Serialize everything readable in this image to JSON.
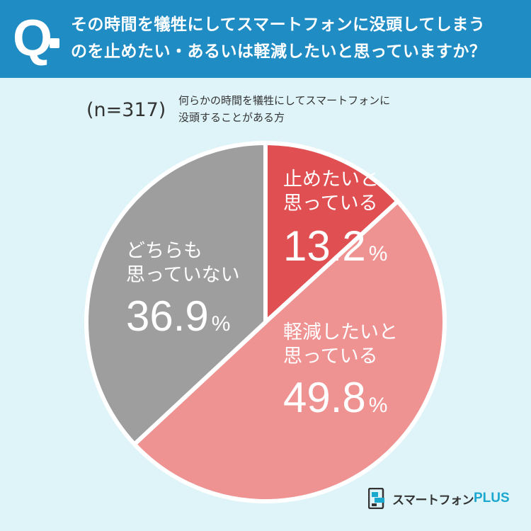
{
  "header": {
    "q_mark": "Q",
    "question_line1": "その時間を犠牲にしてスマートフォンに没頭してしまう",
    "question_line2": "のを止めたい・あるいは軽減したいと思っていますか？"
  },
  "sample": {
    "n_label": "(n=317)",
    "subject_line1": "何らかの時間を犠牲にしてスマートフォンに",
    "subject_line2": "没頭することがある方"
  },
  "chart_data": {
    "type": "pie",
    "start": "12 o'clock, clockwise",
    "slices": [
      {
        "label_lines": [
          "止めたいと",
          "思っている"
        ],
        "value": 13.2,
        "value_text": "13.2",
        "unit": "%",
        "color": "#e05052"
      },
      {
        "label_lines": [
          "軽減したいと",
          "思っている"
        ],
        "value": 49.8,
        "value_text": "49.8",
        "unit": "%",
        "color": "#ef9292"
      },
      {
        "label_lines": [
          "どちらも",
          "思っていない"
        ],
        "value": 36.9,
        "value_text": "36.9",
        "unit": "%",
        "color": "#9e9e9e"
      }
    ]
  },
  "logo": {
    "text": "スマートフォン",
    "plus": "PLUS",
    "icon": "brand-logo-icon"
  },
  "colors": {
    "header_bg": "#1f8cc4",
    "page_bg": "#dff4f8"
  }
}
